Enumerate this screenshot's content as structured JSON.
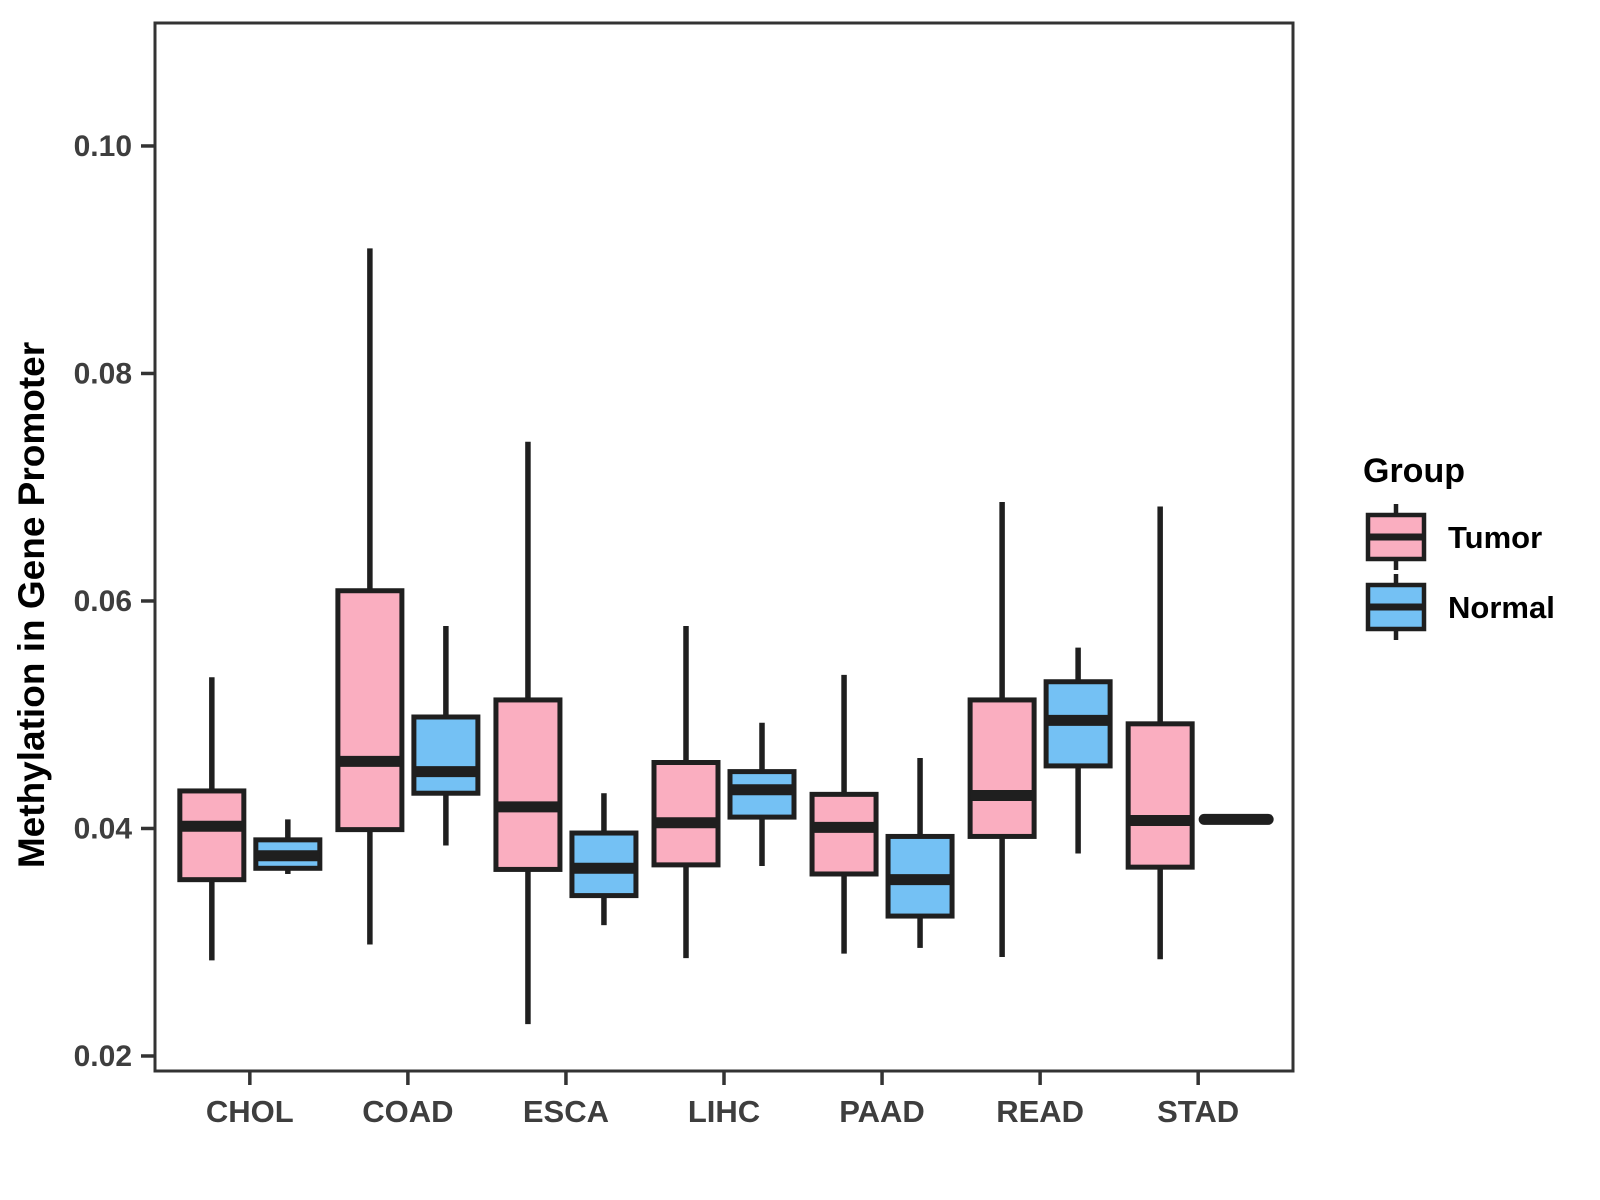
{
  "chart_data": {
    "type": "box",
    "title": "",
    "ylabel": "Methylation in Gene Promoter",
    "xlabel": "",
    "categories": [
      "CHOL",
      "COAD",
      "ESCA",
      "LIHC",
      "PAAD",
      "READ",
      "STAD"
    ],
    "y_ticks": [
      {
        "label": "0.02",
        "value": 0.02
      },
      {
        "label": "0.04",
        "value": 0.04
      },
      {
        "label": "0.06",
        "value": 0.06
      },
      {
        "label": "0.08",
        "value": 0.08
      },
      {
        "label": "0.10",
        "value": 0.1
      }
    ],
    "ylim": [
      0.01868,
      0.11081
    ],
    "grid": false,
    "legend_position": "right",
    "legend": {
      "title": "Group",
      "entries": [
        {
          "label": "Tumor",
          "color": "#FAAEC0"
        },
        {
          "label": "Normal",
          "color": "#74C1F4"
        }
      ]
    },
    "style": {
      "box_outline": "#1f1f1f",
      "median_color": "#1f1f1f",
      "whisker_color": "#1f1f1f",
      "panel_border": "#333333",
      "axis_text_color": "#3e3e3e",
      "title_text_color": "#000000",
      "background": "#ffffff"
    },
    "series": [
      {
        "name": "Tumor",
        "color": "#FAAEC0",
        "boxes": [
          {
            "category": "CHOL",
            "low": 0.0284,
            "q1": 0.0355,
            "median": 0.0402,
            "q3": 0.0433,
            "high": 0.0533
          },
          {
            "category": "COAD",
            "low": 0.0298,
            "q1": 0.0399,
            "median": 0.0459,
            "q3": 0.0609,
            "high": 0.091
          },
          {
            "category": "ESCA",
            "low": 0.0228,
            "q1": 0.0364,
            "median": 0.0419,
            "q3": 0.0513,
            "high": 0.074
          },
          {
            "category": "LIHC",
            "low": 0.0286,
            "q1": 0.0368,
            "median": 0.0405,
            "q3": 0.0458,
            "high": 0.0578
          },
          {
            "category": "PAAD",
            "low": 0.029,
            "q1": 0.036,
            "median": 0.0401,
            "q3": 0.043,
            "high": 0.0535
          },
          {
            "category": "READ",
            "low": 0.0287,
            "q1": 0.0393,
            "median": 0.0429,
            "q3": 0.0513,
            "high": 0.0687
          },
          {
            "category": "STAD",
            "low": 0.0285,
            "q1": 0.0366,
            "median": 0.0407,
            "q3": 0.0492,
            "high": 0.0683
          }
        ]
      },
      {
        "name": "Normal",
        "color": "#74C1F4",
        "boxes": [
          {
            "category": "CHOL",
            "low": 0.036,
            "q1": 0.0365,
            "median": 0.0376,
            "q3": 0.039,
            "high": 0.0408
          },
          {
            "category": "COAD",
            "low": 0.0385,
            "q1": 0.0431,
            "median": 0.045,
            "q3": 0.0498,
            "high": 0.0578
          },
          {
            "category": "ESCA",
            "low": 0.0315,
            "q1": 0.0341,
            "median": 0.0365,
            "q3": 0.0396,
            "high": 0.0431
          },
          {
            "category": "LIHC",
            "low": 0.0367,
            "q1": 0.041,
            "median": 0.0434,
            "q3": 0.045,
            "high": 0.0493
          },
          {
            "category": "PAAD",
            "low": 0.0295,
            "q1": 0.0323,
            "median": 0.0355,
            "q3": 0.0393,
            "high": 0.0462
          },
          {
            "category": "READ",
            "low": 0.0378,
            "q1": 0.0455,
            "median": 0.0495,
            "q3": 0.0529,
            "high": 0.0559
          },
          {
            "category": "STAD",
            "low": 0.0408,
            "q1": 0.0408,
            "median": 0.0408,
            "q3": 0.0408,
            "high": 0.0408
          }
        ]
      }
    ]
  }
}
